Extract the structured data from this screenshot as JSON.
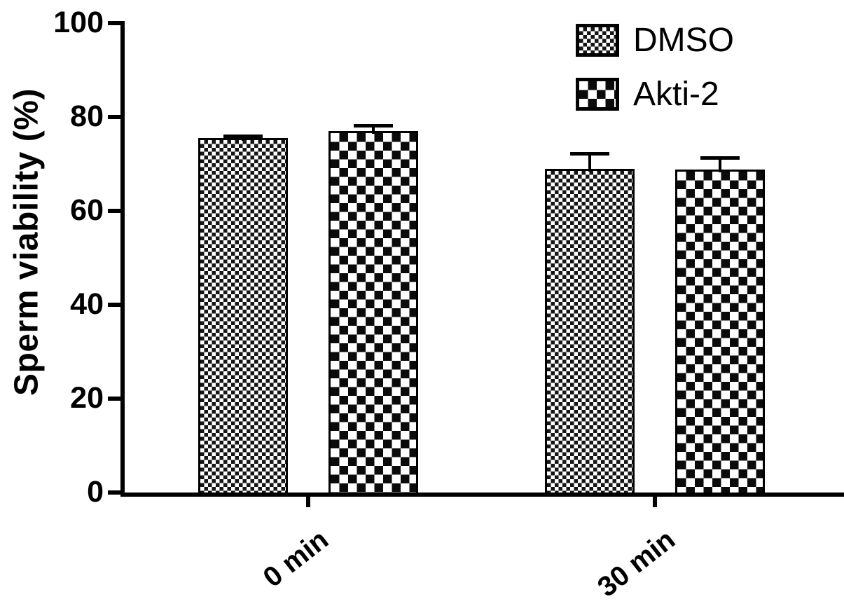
{
  "chart_data": {
    "type": "bar",
    "title": "",
    "xlabel": "",
    "ylabel": "Sperm viability (%)",
    "categories": [
      "0 min",
      "30 min"
    ],
    "series": [
      {
        "name": "DMSO",
        "pattern": "fine-checker",
        "values": [
          75.5,
          69.0
        ],
        "errors": [
          0.8,
          3.5
        ]
      },
      {
        "name": "Akti-2",
        "pattern": "coarse-checker",
        "values": [
          77.0,
          68.8
        ],
        "errors": [
          1.5,
          2.8
        ]
      }
    ],
    "ylim": [
      0,
      100
    ],
    "yticks": [
      0,
      20,
      40,
      60,
      80,
      100
    ],
    "legend_position": "top-right",
    "grid": false,
    "error_bars": "upper",
    "colors": {
      "bar_outline": "#000000",
      "background": "#ffffff",
      "axis": "#000000"
    }
  }
}
